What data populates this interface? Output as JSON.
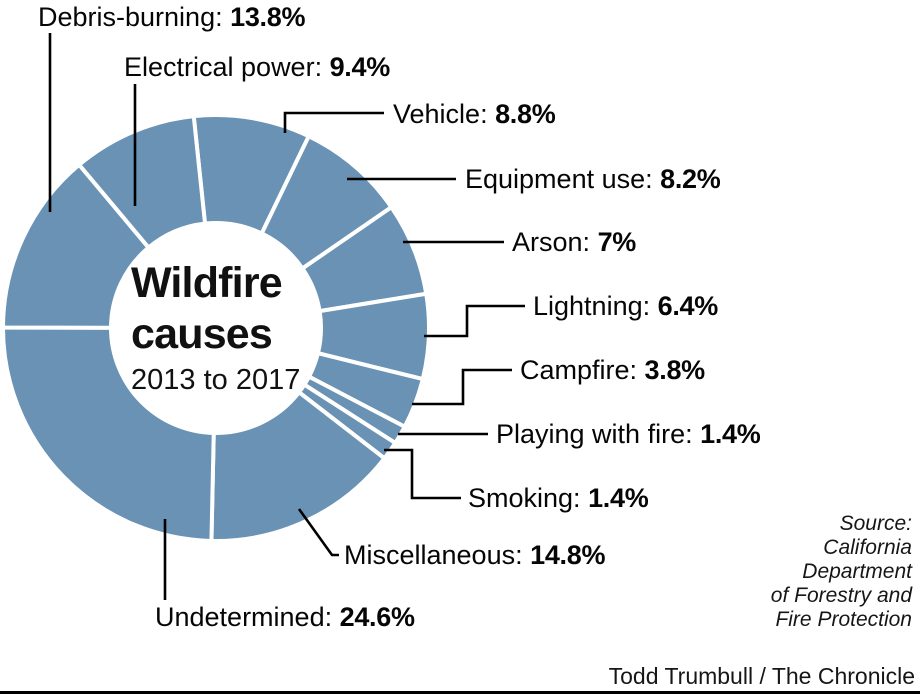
{
  "chart_data": {
    "type": "pie",
    "donut": true,
    "title_line1": "Wildfire",
    "title_line2": "causes",
    "subtitle": "2013 to 2017",
    "unit": "%",
    "color": "#6a92b4",
    "gap_color": "#ffffff",
    "start_angle_deg": -6,
    "clockwise": true,
    "slices": [
      {
        "label": "Vehicle:",
        "value": 8.8,
        "value_label": "8.8%"
      },
      {
        "label": "Equipment use:",
        "value": 8.2,
        "value_label": "8.2%"
      },
      {
        "label": "Arson:",
        "value": 7,
        "value_label": "7%"
      },
      {
        "label": "Lightning:",
        "value": 6.4,
        "value_label": "6.4%"
      },
      {
        "label": "Campfire:",
        "value": 3.8,
        "value_label": "3.8%"
      },
      {
        "label": "Playing with fire:",
        "value": 1.4,
        "value_label": "1.4%"
      },
      {
        "label": "Smoking:",
        "value": 1.4,
        "value_label": "1.4%"
      },
      {
        "label": "Miscellaneous:",
        "value": 14.8,
        "value_label": "14.8%"
      },
      {
        "label": "Undetermined:",
        "value": 24.6,
        "value_label": "24.6%"
      },
      {
        "label": "Debris-burning:",
        "value": 13.8,
        "value_label": "13.8%"
      },
      {
        "label": "Electrical power:",
        "value": 9.4,
        "value_label": "9.4%"
      }
    ]
  },
  "source": {
    "line1": "Source:",
    "line2": "California",
    "line3": "Department",
    "line4": "of Forestry and",
    "line5": "Fire Protection"
  },
  "credit": "Todd Trumbull / The Chronicle"
}
